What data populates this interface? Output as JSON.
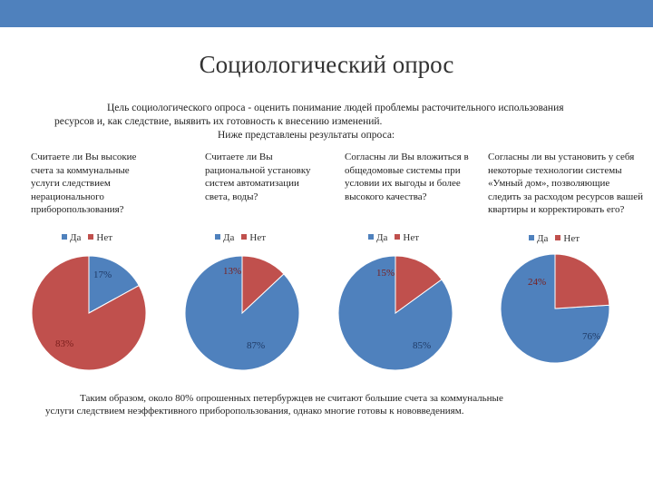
{
  "colors": {
    "yes": "#4f81bd",
    "no": "#c0504d",
    "bar": "#4f81bd"
  },
  "page": {
    "title": "Социологический опрос",
    "intro_lines": [
      "Цель социологического опроса - оценить понимание людей проблемы расточительного использования",
      "ресурсов и, как следствие, выявить их готовность к внесению изменений.",
      "Ниже представлены результаты опроса:"
    ],
    "conclusion_lines": [
      "Таким образом, около 80% опрошенных петербуржцев не считают большие счета за коммунальные",
      "услуги следствием неэффективного приборопользования, однако многие готовы к нововведениям."
    ]
  },
  "chart_data": [
    {
      "type": "pie",
      "question": "Считаете ли Вы высокие счета за коммунальные услуги следствием нерационального приборопользования?",
      "categories": [
        "Да",
        "Нет"
      ],
      "values": [
        17,
        83
      ],
      "labels": [
        "17%",
        "83%"
      ]
    },
    {
      "type": "pie",
      "question": "Считаете ли Вы рациональной установку систем автоматизации света, воды?",
      "categories": [
        "Да",
        "Нет"
      ],
      "values": [
        87,
        13
      ],
      "labels": [
        "87%",
        "13%"
      ]
    },
    {
      "type": "pie",
      "question": "Согласны ли Вы вложиться в общедомовые системы при условии их выгоды и более высокого качества?",
      "categories": [
        "Да",
        "Нет"
      ],
      "values": [
        85,
        15
      ],
      "labels": [
        "85%",
        "15%"
      ]
    },
    {
      "type": "pie",
      "question": "Согласны ли вы установить у себя некоторые технологии системы «Умный дом», позволяющие следить за расходом ресурсов вашей квартиры и корректировать его?",
      "categories": [
        "Да",
        "Нет"
      ],
      "values": [
        76,
        24
      ],
      "labels": [
        "76%",
        "24%"
      ]
    }
  ]
}
